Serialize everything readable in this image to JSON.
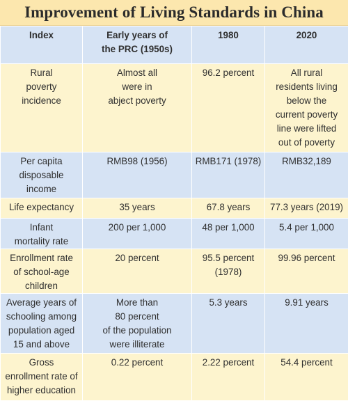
{
  "title": "Improvement of Living Standards in China",
  "columns": [
    "Index",
    "Early years of\nthe PRC (1950s)",
    "1980",
    "2020"
  ],
  "rows": [
    {
      "index": "Rural\npoverty\nincidence",
      "early": "Almost all\nwere in\nabject poverty",
      "y1980": "96.2 percent",
      "y2020": "All rural\nresidents living\nbelow the\ncurrent poverty\nline were lifted\nout of poverty"
    },
    {
      "index": "Per capita\ndisposable\nincome",
      "early": "RMB98 (1956)",
      "y1980": "RMB171 (1978)",
      "y2020": "RMB32,189"
    },
    {
      "index": "Life expectancy",
      "early": "35 years",
      "y1980": "67.8 years",
      "y2020": "77.3 years (2019)"
    },
    {
      "index": "Infant\nmortality rate",
      "early": "200 per 1,000",
      "y1980": "48 per 1,000",
      "y2020": "5.4 per 1,000"
    },
    {
      "index": "Enrollment rate\nof school-age\nchildren",
      "early": "20 percent",
      "y1980": "95.5 percent\n(1978)",
      "y2020": "99.96 percent"
    },
    {
      "index": "Average years of\nschooling among\npopulation aged\n15 and above",
      "early": "More than\n80 percent\nof the population\nwere illiterate",
      "y1980": "5.3 years",
      "y2020": "9.91 years"
    },
    {
      "index": "Gross\nenrollment rate of\nhigher education",
      "early": "0.22 percent",
      "y1980": "2.22 percent",
      "y2020": "54.4 percent"
    }
  ]
}
